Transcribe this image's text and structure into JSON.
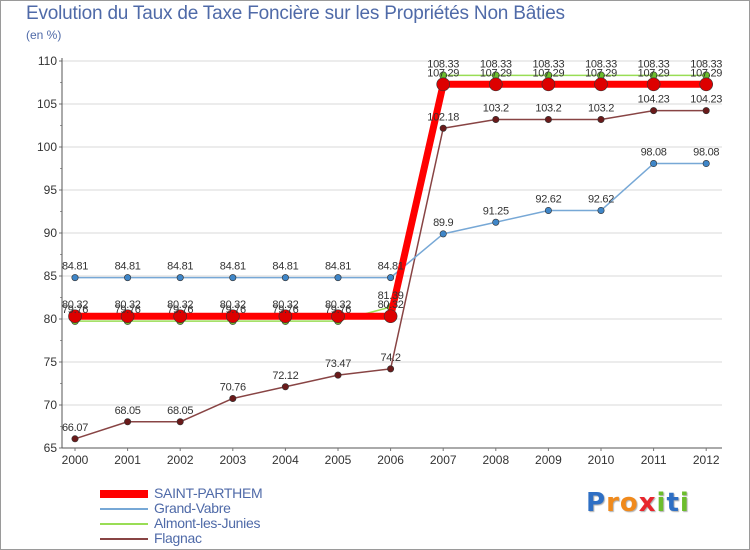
{
  "chart_data": {
    "type": "line",
    "title": "Evolution du Taux de Taxe Foncière sur les Propriétés Non Bâties",
    "ylabel": "(en %)",
    "xlabel": "",
    "x": [
      "2000",
      "2001",
      "2002",
      "2003",
      "2004",
      "2005",
      "2006",
      "2007",
      "2008",
      "2009",
      "2010",
      "2011",
      "2012"
    ],
    "ylim": [
      65,
      110
    ],
    "yticks": [
      65,
      70,
      75,
      80,
      85,
      90,
      95,
      100,
      105,
      110
    ],
    "grid": "horizontal",
    "series": [
      {
        "name": "SAINT-PARTHEM",
        "color": "#ff0000",
        "marker": "#dd0000",
        "values": [
          80.32,
          80.32,
          80.32,
          80.32,
          80.32,
          80.32,
          80.32,
          107.29,
          107.29,
          107.29,
          107.29,
          107.29,
          107.29
        ],
        "labels": [
          "80.32",
          "80.32",
          "80.32",
          "80.32",
          "80.32",
          "80.32",
          "80.32",
          "107.29",
          "107.29",
          "107.29",
          "107.29",
          "107.29",
          "107.29"
        ]
      },
      {
        "name": "Grand-Vabre",
        "color": "#77a8d6",
        "marker": "#3f86c8",
        "values": [
          84.81,
          84.81,
          84.81,
          84.81,
          84.81,
          84.81,
          84.81,
          89.9,
          91.25,
          92.62,
          92.62,
          98.08,
          98.08
        ],
        "labels": [
          "84.81",
          "84.81",
          "84.81",
          "84.81",
          "84.81",
          "84.81",
          "84.81",
          "89.9",
          "91.25",
          "92.62",
          "92.62",
          "98.08",
          "98.08"
        ]
      },
      {
        "name": "Almont-les-Junies",
        "color": "#99dd55",
        "marker": "#6cbd2c",
        "values": [
          79.76,
          79.76,
          79.76,
          79.76,
          79.76,
          79.76,
          81.39,
          108.33,
          108.33,
          108.33,
          108.33,
          108.33,
          108.33
        ],
        "labels": [
          "79.76",
          "79.76",
          "79.76",
          "79.76",
          "79.76",
          "79.76",
          "81.39",
          "108.33",
          "108.33",
          "108.33",
          "108.33",
          "108.33",
          "108.33"
        ]
      },
      {
        "name": "Flagnac",
        "color": "#884444",
        "marker": "#6a1a1a",
        "values": [
          66.07,
          68.05,
          68.05,
          70.76,
          72.12,
          73.47,
          74.2,
          102.18,
          103.2,
          103.2,
          103.2,
          104.23,
          104.23
        ],
        "labels": [
          "66.07",
          "68.05",
          "68.05",
          "70.76",
          "72.12",
          "73.47",
          "74.2",
          "102.18",
          "103.2",
          "103.2",
          "103.2",
          "104.23",
          "104.23"
        ]
      }
    ]
  },
  "legend": {
    "items": [
      {
        "label": "SAINT-PARTHEM",
        "color": "#ff0000"
      },
      {
        "label": "Grand-Vabre",
        "color": "#77a8d6"
      },
      {
        "label": "Almont-les-Junies",
        "color": "#99dd55"
      },
      {
        "label": "Flagnac",
        "color": "#884444"
      }
    ]
  },
  "brand": {
    "letters": [
      "P",
      "r",
      "o",
      "x",
      "i",
      "t",
      "i"
    ],
    "colors": [
      "#2e6fc4",
      "#f08a1c",
      "#f08a1c",
      "#e8262d",
      "#6cbd2c",
      "#2e6fc4",
      "#6cbd2c"
    ]
  }
}
